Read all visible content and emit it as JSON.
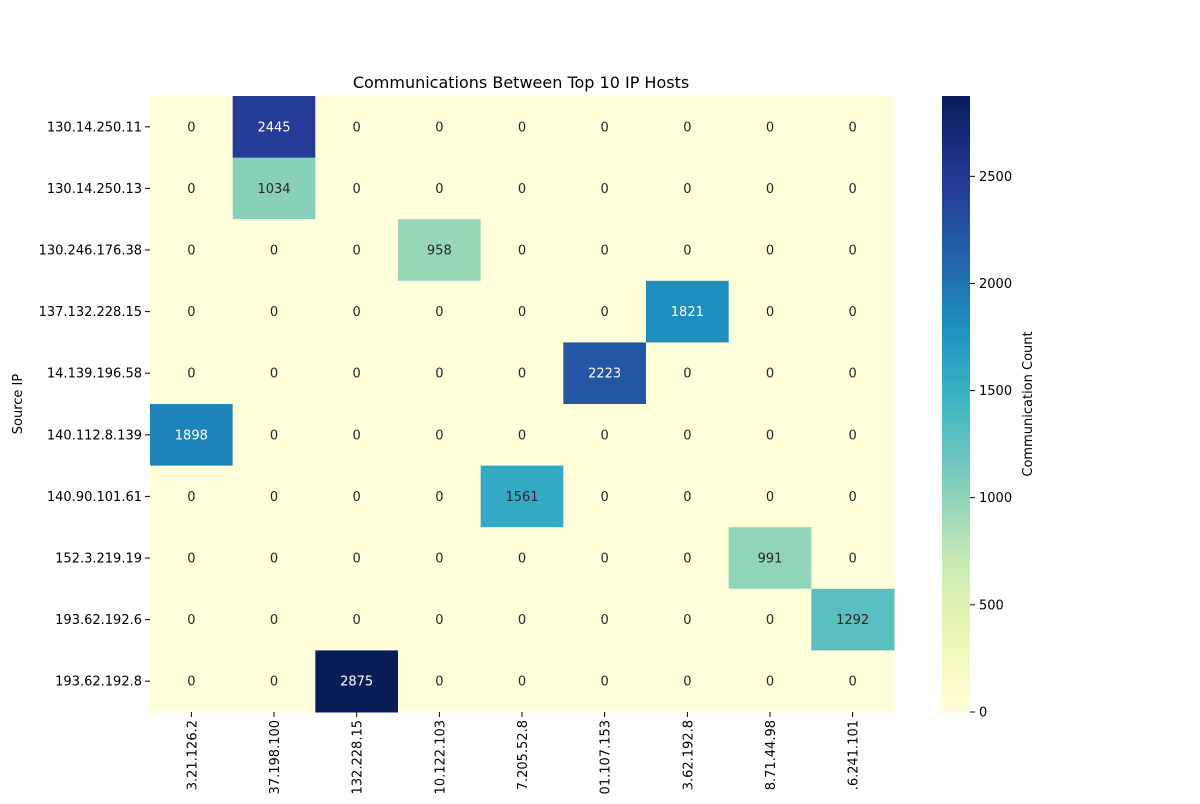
{
  "chart_data": {
    "type": "heatmap",
    "title": "Communications Between Top 10 IP Hosts",
    "ylabel": "Source IP",
    "xlabel": "",
    "row_labels": [
      "130.14.250.11",
      "130.14.250.13",
      "130.246.176.38",
      "137.132.228.15",
      "14.139.196.58",
      "140.112.8.139",
      "140.90.101.61",
      "152.3.219.19",
      "193.62.192.6",
      "193.62.192.8"
    ],
    "col_labels": [
      "3.21.126.2",
      "37.198.100",
      "132.228.15",
      "10.122.103",
      "7.205.52.8",
      "01.107.153",
      "3.62.192.8",
      "8.71.44.98",
      ".6.241.101"
    ],
    "values": [
      [
        0,
        2445,
        0,
        0,
        0,
        0,
        0,
        0,
        0
      ],
      [
        0,
        1034,
        0,
        0,
        0,
        0,
        0,
        0,
        0
      ],
      [
        0,
        0,
        0,
        958,
        0,
        0,
        0,
        0,
        0
      ],
      [
        0,
        0,
        0,
        0,
        0,
        0,
        1821,
        0,
        0
      ],
      [
        0,
        0,
        0,
        0,
        0,
        2223,
        0,
        0,
        0
      ],
      [
        1898,
        0,
        0,
        0,
        0,
        0,
        0,
        0,
        0
      ],
      [
        0,
        0,
        0,
        0,
        1561,
        0,
        0,
        0,
        0
      ],
      [
        0,
        0,
        0,
        0,
        0,
        0,
        0,
        991,
        0
      ],
      [
        0,
        0,
        0,
        0,
        0,
        0,
        0,
        0,
        1292
      ],
      [
        0,
        0,
        2875,
        0,
        0,
        0,
        0,
        0,
        0
      ]
    ],
    "colorbar": {
      "label": "Communication Count",
      "range": [
        0,
        2875
      ],
      "ticks": [
        0,
        500,
        1000,
        1500,
        2000,
        2500
      ],
      "colormap": "YlGnBu"
    },
    "grid": false
  }
}
